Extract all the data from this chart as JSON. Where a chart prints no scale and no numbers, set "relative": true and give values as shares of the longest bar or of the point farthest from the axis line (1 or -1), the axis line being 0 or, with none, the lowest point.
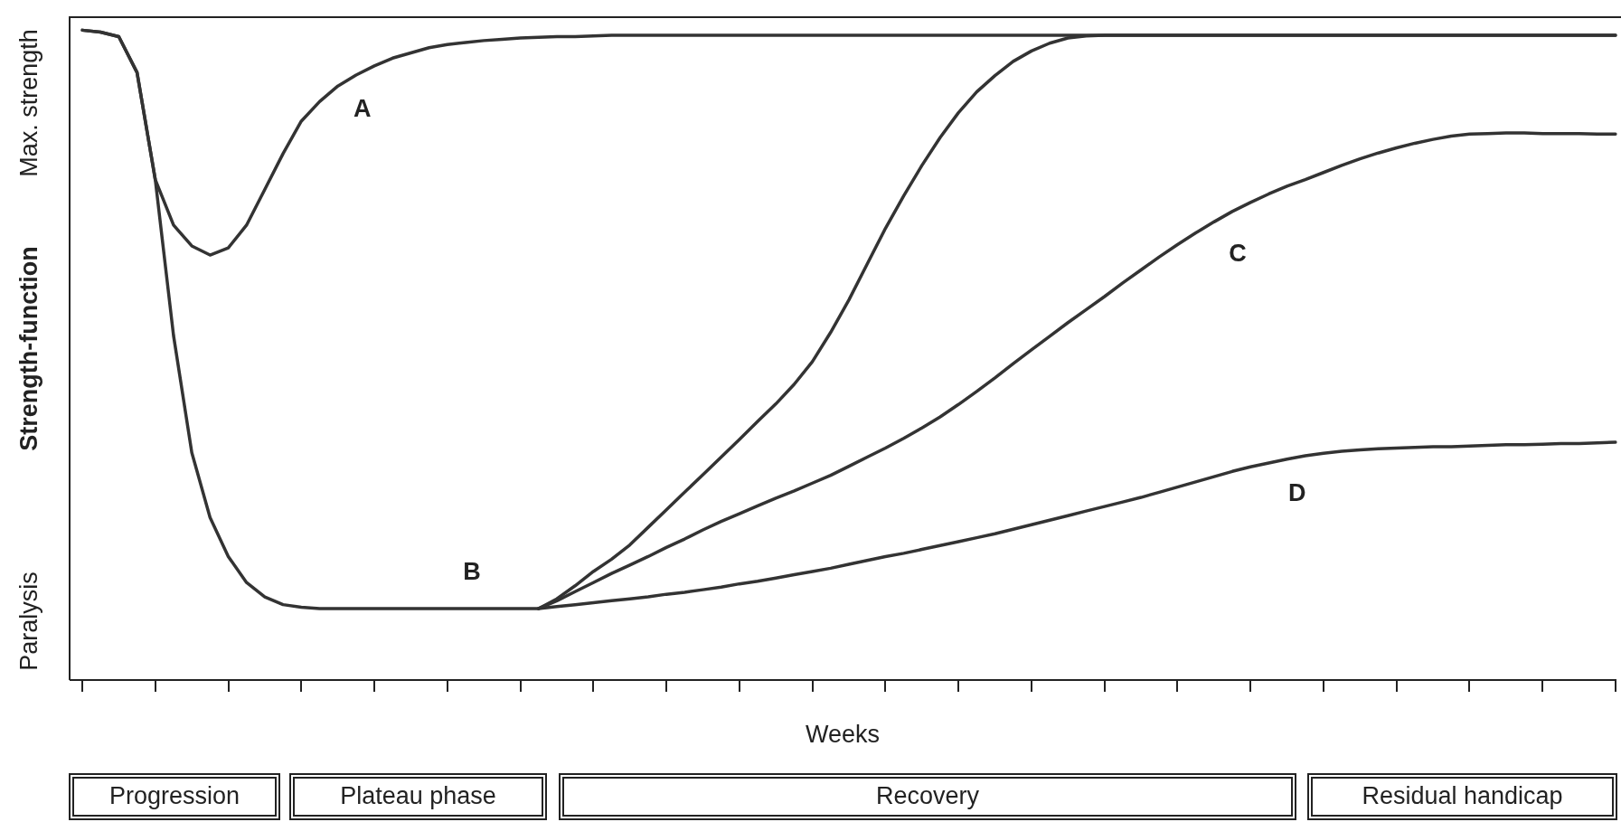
{
  "chart_data": {
    "type": "line",
    "relative": true,
    "xlabel": "Weeks",
    "ylabel": "Strength-function",
    "annotations": [
      "Paralysis",
      "Max. strength",
      "Progression",
      "Plateau phase",
      "Recovery",
      "Residual handicap"
    ],
    "categories": [
      null,
      null,
      null,
      null,
      null,
      null,
      null,
      null,
      null,
      null,
      null,
      null,
      null,
      null,
      null,
      null,
      null,
      null,
      null,
      null,
      null,
      null,
      null,
      null,
      null,
      null,
      null,
      null,
      null,
      null,
      null,
      null,
      null,
      null,
      null,
      null,
      null,
      null,
      null,
      null,
      null,
      null,
      null,
      null,
      null,
      null,
      null,
      null,
      null,
      null,
      null,
      null,
      null,
      null,
      null,
      null,
      null,
      null,
      null,
      null,
      null,
      null,
      null,
      null,
      null,
      null,
      null,
      null,
      null,
      null,
      null,
      null,
      null,
      null,
      null,
      null,
      null,
      null,
      null,
      null,
      null,
      null,
      null,
      null,
      null
    ],
    "marker": "none",
    "line_style": "solid",
    "grid": false,
    "legend": false,
    "series": [
      {
        "name": "A",
        "color": "#333333",
        "values": [
          1.0,
          0.997,
          0.99,
          0.935,
          0.77,
          0.7,
          0.668,
          0.654,
          0.665,
          0.7,
          0.755,
          0.81,
          0.86,
          0.89,
          0.914,
          0.931,
          0.945,
          0.957,
          0.965,
          0.973,
          0.978,
          0.981,
          0.984,
          0.986,
          0.988,
          0.989,
          0.99,
          0.99,
          0.991,
          0.992,
          0.992,
          0.992,
          0.992,
          0.992,
          0.992,
          0.992,
          0.992,
          0.992,
          0.992,
          0.992,
          0.992,
          0.992,
          0.992,
          0.992,
          0.992,
          0.992,
          0.992,
          0.992,
          0.992,
          0.992,
          0.992,
          0.992,
          0.992,
          0.992,
          0.992,
          0.992,
          0.992,
          0.992,
          0.992,
          0.992,
          0.992,
          0.992,
          0.992,
          0.992,
          0.992,
          0.992,
          0.992,
          0.992,
          0.992,
          0.992,
          0.992,
          0.992,
          0.992,
          0.992,
          0.992,
          0.992,
          0.992,
          0.992,
          0.992,
          0.992,
          0.992,
          0.992,
          0.992,
          0.992,
          0.992
        ]
      },
      {
        "name": "B",
        "color": "#333333",
        "values": [
          1.0,
          0.997,
          0.99,
          0.935,
          0.77,
          0.53,
          0.35,
          0.25,
          0.19,
          0.15,
          0.128,
          0.116,
          0.112,
          0.11,
          0.11,
          0.11,
          0.11,
          0.11,
          0.11,
          0.11,
          0.11,
          0.11,
          0.11,
          0.11,
          0.11,
          0.11,
          0.125,
          0.145,
          0.167,
          0.186,
          0.208,
          0.235,
          0.262,
          0.289,
          0.316,
          0.343,
          0.37,
          0.398,
          0.425,
          0.455,
          0.49,
          0.535,
          0.585,
          0.64,
          0.695,
          0.745,
          0.792,
          0.835,
          0.873,
          0.905,
          0.93,
          0.952,
          0.968,
          0.98,
          0.988,
          0.991,
          0.992,
          0.992,
          0.992,
          0.992,
          0.992,
          0.992,
          0.992,
          0.992,
          0.992,
          0.992,
          0.992,
          0.992,
          0.992,
          0.992,
          0.992,
          0.992,
          0.992,
          0.992,
          0.992,
          0.992,
          0.992,
          0.992,
          0.992,
          0.992,
          0.992,
          0.992,
          0.992,
          0.992,
          0.992
        ]
      },
      {
        "name": "C",
        "color": "#333333",
        "values": [
          null,
          null,
          null,
          null,
          null,
          null,
          null,
          null,
          null,
          null,
          null,
          null,
          null,
          null,
          null,
          null,
          null,
          null,
          null,
          null,
          null,
          null,
          null,
          null,
          null,
          0.11,
          0.122,
          0.136,
          0.15,
          0.164,
          0.177,
          0.19,
          0.204,
          0.217,
          0.231,
          0.244,
          0.256,
          0.268,
          0.28,
          0.291,
          0.303,
          0.315,
          0.329,
          0.343,
          0.357,
          0.372,
          0.388,
          0.405,
          0.424,
          0.444,
          0.465,
          0.487,
          0.508,
          0.529,
          0.55,
          0.57,
          0.59,
          0.611,
          0.631,
          0.651,
          0.67,
          0.688,
          0.705,
          0.721,
          0.735,
          0.748,
          0.76,
          0.77,
          0.781,
          0.792,
          0.802,
          0.811,
          0.819,
          0.826,
          0.832,
          0.837,
          0.84,
          0.841,
          0.842,
          0.842,
          0.841,
          0.841,
          0.841,
          0.84,
          0.84
        ]
      },
      {
        "name": "D",
        "color": "#333333",
        "values": [
          null,
          null,
          null,
          null,
          null,
          null,
          null,
          null,
          null,
          null,
          null,
          null,
          null,
          null,
          null,
          null,
          null,
          null,
          null,
          null,
          null,
          null,
          null,
          null,
          null,
          0.11,
          0.113,
          0.116,
          0.119,
          0.122,
          0.125,
          0.128,
          0.132,
          0.135,
          0.139,
          0.143,
          0.148,
          0.152,
          0.157,
          0.162,
          0.167,
          0.172,
          0.178,
          0.184,
          0.19,
          0.195,
          0.201,
          0.207,
          0.213,
          0.219,
          0.225,
          0.232,
          0.239,
          0.246,
          0.253,
          0.26,
          0.267,
          0.274,
          0.281,
          0.289,
          0.297,
          0.305,
          0.313,
          0.321,
          0.328,
          0.334,
          0.34,
          0.345,
          0.349,
          0.352,
          0.354,
          0.356,
          0.357,
          0.358,
          0.359,
          0.359,
          0.36,
          0.361,
          0.362,
          0.362,
          0.363,
          0.364,
          0.364,
          0.365,
          0.366
        ]
      }
    ]
  }
}
